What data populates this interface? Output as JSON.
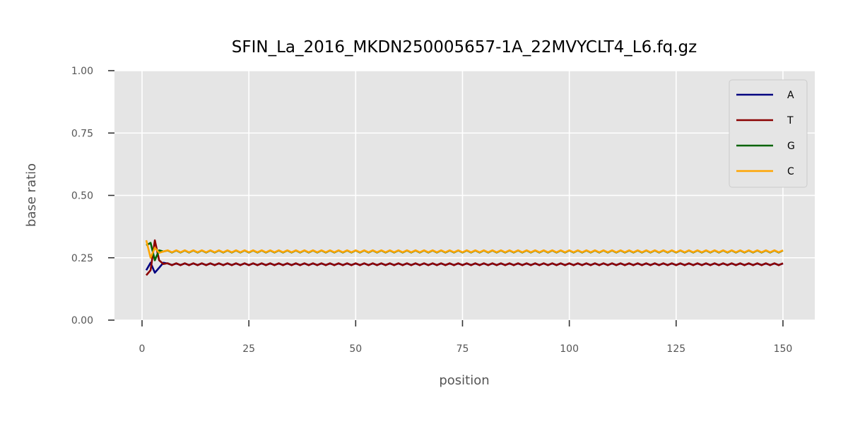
{
  "chart_data": {
    "type": "line",
    "title": "SFIN_La_2016_MKDN250005657-1A_22MVYCLT4_L6.fq.gz",
    "xlabel": "position",
    "ylabel": "base ratio",
    "xlim": [
      -6.45,
      157.45
    ],
    "ylim": [
      0,
      1
    ],
    "xticks": [
      0,
      25,
      50,
      75,
      100,
      125,
      150
    ],
    "yticks": [
      0.0,
      0.25,
      0.5,
      0.75,
      1.0
    ],
    "xtick_labels": [
      "0",
      "25",
      "50",
      "75",
      "100",
      "125",
      "150"
    ],
    "ytick_labels": [
      "0.00",
      "0.25",
      "0.50",
      "0.75",
      "1.00"
    ],
    "grid": true,
    "legend_position": "top-right",
    "series": [
      {
        "name": "A",
        "color": "#000080",
        "start": 1,
        "head": [
          0.2,
          0.23,
          0.19,
          0.21,
          0.23
        ],
        "base": 0.224,
        "osc": 0.003,
        "end": 150
      },
      {
        "name": "T",
        "color": "#8B0000",
        "start": 1,
        "head": [
          0.18,
          0.2,
          0.32,
          0.24,
          0.225
        ],
        "base": 0.224,
        "osc": 0.004,
        "end": 150
      },
      {
        "name": "G",
        "color": "#006400",
        "start": 1,
        "head": [
          0.3,
          0.31,
          0.24,
          0.28,
          0.275
        ],
        "base": 0.275,
        "osc": 0.004,
        "end": 150
      },
      {
        "name": "C",
        "color": "#FFA500",
        "start": 1,
        "head": [
          0.32,
          0.25,
          0.29,
          0.27,
          0.275
        ],
        "base": 0.276,
        "osc": 0.004,
        "end": 150
      }
    ]
  }
}
